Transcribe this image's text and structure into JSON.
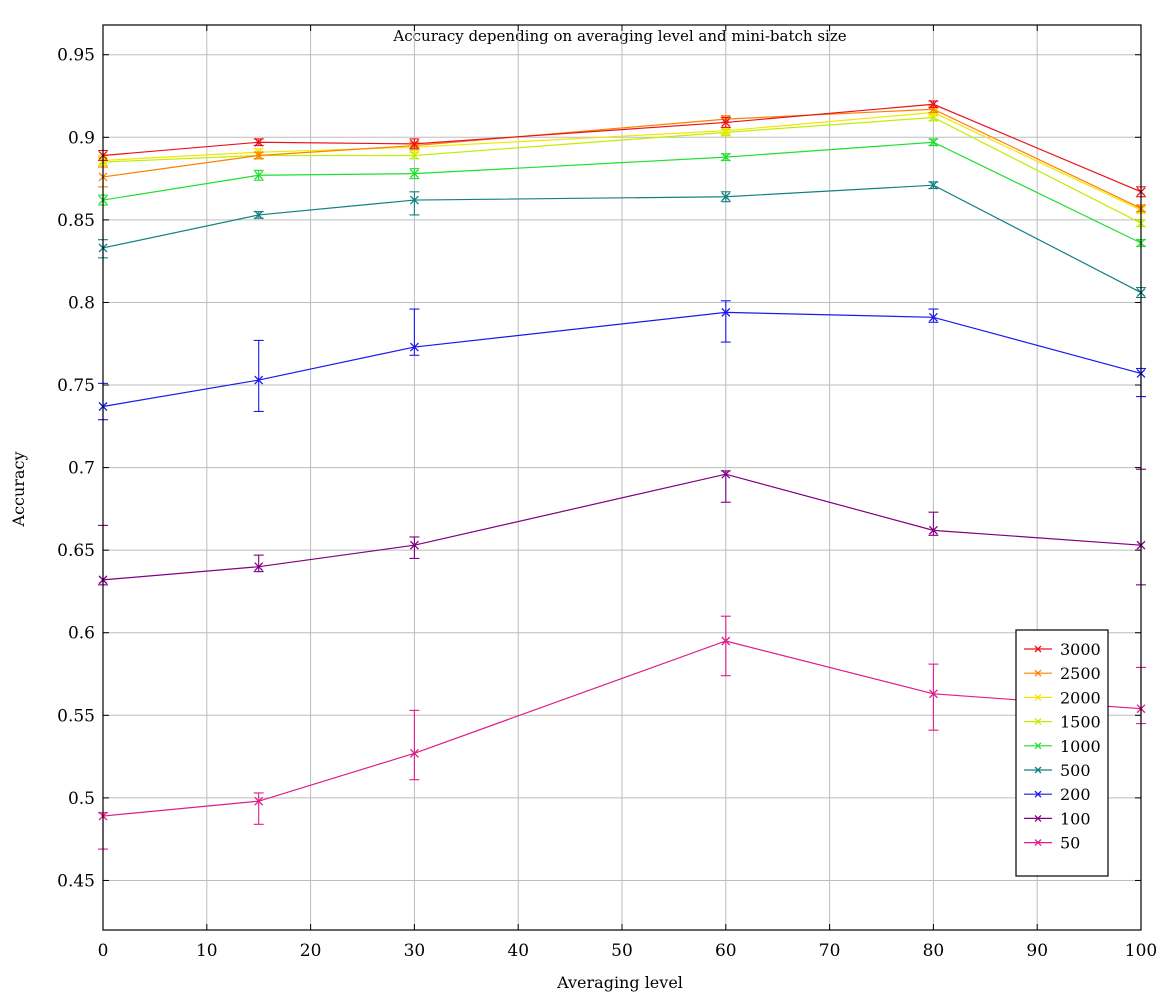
{
  "chart_data": {
    "type": "line",
    "title": "Accuracy depending on averaging level and mini-batch size",
    "xlabel": "Averaging level",
    "ylabel": "Accuracy",
    "xlim": [
      0,
      100
    ],
    "ylim": [
      0.42,
      0.968
    ],
    "xticks": [
      0,
      10,
      20,
      30,
      40,
      50,
      60,
      70,
      80,
      90,
      100
    ],
    "yticks": [
      0.45,
      0.5,
      0.55,
      0.6,
      0.65,
      0.7,
      0.75,
      0.8,
      0.85,
      0.9,
      0.95
    ],
    "xtick_labels": [
      "0",
      "10",
      "20",
      "30",
      "40",
      "50",
      "60",
      "70",
      "80",
      "90",
      "100"
    ],
    "ytick_labels": [
      "0.45",
      "0.5",
      "0.55",
      "0.6",
      "0.65",
      "0.7",
      "0.75",
      "0.8",
      "0.85",
      "0.9",
      "0.95"
    ],
    "grid": true,
    "legend_position": "bottom-right",
    "x": [
      0,
      15,
      30,
      60,
      80,
      100
    ],
    "series": [
      {
        "name": "3000",
        "color": "#e8141c",
        "values": [
          0.889,
          0.897,
          0.896,
          0.909,
          0.92,
          0.867
        ],
        "err_low": [
          0.886,
          0.895,
          0.893,
          0.906,
          0.918,
          0.864
        ],
        "err_high": [
          0.892,
          0.899,
          0.899,
          0.912,
          0.922,
          0.87
        ]
      },
      {
        "name": "2500",
        "color": "#ff8000",
        "values": [
          0.876,
          0.889,
          0.895,
          0.911,
          0.917,
          0.857
        ],
        "err_low": [
          0.87,
          0.887,
          0.893,
          0.909,
          0.915,
          0.855
        ],
        "err_high": [
          0.882,
          0.891,
          0.897,
          0.913,
          0.919,
          0.859
        ]
      },
      {
        "name": "2000",
        "color": "#f2e600",
        "values": [
          0.886,
          0.891,
          0.894,
          0.904,
          0.915,
          0.856
        ],
        "err_low": [
          0.883,
          0.889,
          0.892,
          0.902,
          0.913,
          0.854
        ],
        "err_high": [
          0.889,
          0.893,
          0.896,
          0.906,
          0.917,
          0.858
        ]
      },
      {
        "name": "1500",
        "color": "#bfee00",
        "values": [
          0.885,
          0.889,
          0.889,
          0.903,
          0.912,
          0.848
        ],
        "err_low": [
          0.882,
          0.887,
          0.887,
          0.901,
          0.91,
          0.846
        ],
        "err_high": [
          0.888,
          0.891,
          0.891,
          0.905,
          0.914,
          0.85
        ]
      },
      {
        "name": "1000",
        "color": "#1fdf2f",
        "values": [
          0.862,
          0.877,
          0.878,
          0.888,
          0.897,
          0.836
        ],
        "err_low": [
          0.859,
          0.874,
          0.875,
          0.886,
          0.895,
          0.834
        ],
        "err_high": [
          0.865,
          0.88,
          0.881,
          0.89,
          0.899,
          0.838
        ]
      },
      {
        "name": "500",
        "color": "#128080",
        "values": [
          0.833,
          0.853,
          0.862,
          0.864,
          0.871,
          0.806
        ],
        "err_low": [
          0.827,
          0.851,
          0.853,
          0.861,
          0.869,
          0.803
        ],
        "err_high": [
          0.838,
          0.855,
          0.867,
          0.867,
          0.873,
          0.809
        ]
      },
      {
        "name": "200",
        "color": "#1a1aee",
        "values": [
          0.737,
          0.753,
          0.773,
          0.794,
          0.791,
          0.757
        ],
        "err_low": [
          0.729,
          0.734,
          0.768,
          0.776,
          0.788,
          0.743
        ],
        "err_high": [
          0.751,
          0.777,
          0.796,
          0.801,
          0.796,
          0.76
        ]
      },
      {
        "name": "100",
        "color": "#800080",
        "values": [
          0.632,
          0.64,
          0.653,
          0.696,
          0.662,
          0.653
        ],
        "err_low": [
          0.629,
          0.637,
          0.645,
          0.679,
          0.659,
          0.629
        ],
        "err_high": [
          0.665,
          0.647,
          0.658,
          0.698,
          0.673,
          0.699
        ]
      },
      {
        "name": "50",
        "color": "#e01c8c",
        "values": [
          0.489,
          0.498,
          0.527,
          0.595,
          0.563,
          0.554
        ],
        "err_low": [
          0.469,
          0.484,
          0.511,
          0.574,
          0.541,
          0.545
        ],
        "err_high": [
          0.491,
          0.503,
          0.553,
          0.61,
          0.581,
          0.579
        ]
      }
    ]
  }
}
